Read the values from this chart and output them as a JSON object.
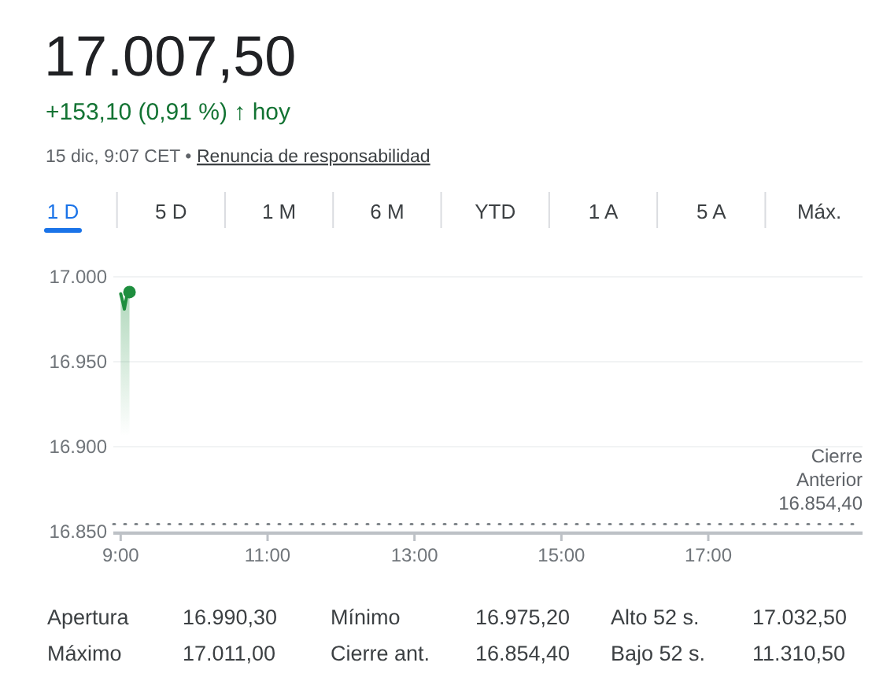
{
  "chart_data": {
    "type": "area",
    "title": "17.007,50",
    "subtitle": "+153,10 (0,91 %) ↑ hoy",
    "annotations": [
      "15 dic, 9:07 CET •",
      "Renuncia de responsabilidad",
      "1 D",
      "5 D",
      "1 M",
      "6 M",
      "YTD",
      "1 A",
      "5 A",
      "Máx.",
      "Apertura",
      "16.990,30",
      "Mínimo",
      "16.975,20",
      "Alto 52 s.",
      "17.032,50",
      "Máximo",
      "17.011,00",
      "Cierre ant.",
      "16.854,40",
      "Bajo 52 s.",
      "11.310,50"
    ],
    "series": [
      {
        "color": "#1e8e3e",
        "x": [
          9.0,
          9.03,
          9.05,
          9.08,
          9.12
        ],
        "values": [
          16990,
          16985,
          16981,
          16988,
          16991
        ]
      }
    ],
    "xlim": [
      8.9,
      19.1
    ],
    "xticks": [
      {
        "value": 9,
        "label": "9:00"
      },
      {
        "value": 11,
        "label": "11:00"
      },
      {
        "value": 13,
        "label": "13:00"
      },
      {
        "value": 15,
        "label": "15:00"
      },
      {
        "value": 17,
        "label": "17:00"
      }
    ],
    "ylim": [
      16850,
      17000
    ],
    "yticks": [
      {
        "value": 16850,
        "label": "16.850"
      },
      {
        "value": 16900,
        "label": "16.900"
      },
      {
        "value": 16950,
        "label": "16.950"
      },
      {
        "value": 17000,
        "label": "17.000"
      }
    ],
    "grid": "y",
    "ref_lines": [
      {
        "axis": "y",
        "value": 16854.4,
        "label": "Cierre Anterior 16.854,40",
        "line_style": "dotted",
        "color": "#80868b"
      }
    ]
  }
}
